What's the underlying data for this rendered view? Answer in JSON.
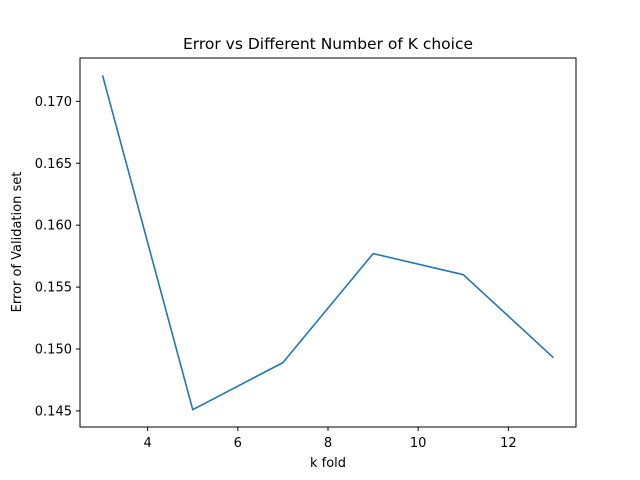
{
  "chart_data": {
    "type": "line",
    "title": "Error vs Different Number of K choice",
    "xlabel": "k fold",
    "ylabel": "Error of Validation set",
    "x": [
      3,
      5,
      7,
      9,
      11,
      13
    ],
    "series": [
      {
        "values": [
          0.1721,
          0.1451,
          0.1489,
          0.1577,
          0.156,
          0.1493
        ],
        "color": "#1f77b4"
      }
    ],
    "xlim": [
      2.5,
      13.5
    ],
    "ylim": [
      0.1437,
      0.1735
    ],
    "xticks": [
      4,
      6,
      8,
      10,
      12
    ],
    "xtick_labels": [
      "4",
      "6",
      "8",
      "10",
      "12"
    ],
    "yticks": [
      0.145,
      0.15,
      0.155,
      0.16,
      0.165,
      0.17
    ],
    "ytick_labels": [
      "0.145",
      "0.150",
      "0.155",
      "0.160",
      "0.165",
      "0.170"
    ],
    "grid": false,
    "legend": "none"
  }
}
